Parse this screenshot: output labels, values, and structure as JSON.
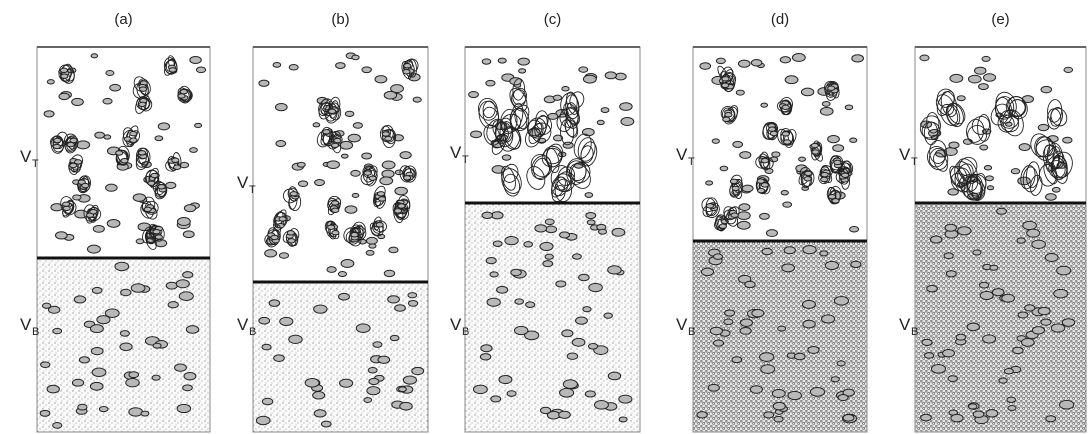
{
  "panels": [
    {
      "label": "(a)"
    },
    {
      "label": "(b)"
    },
    {
      "label": "(c)"
    },
    {
      "label": "(d)"
    },
    {
      "label": "(e)"
    }
  ],
  "zone_labels": {
    "top": {
      "base": "V",
      "sub": "T"
    },
    "bottom": {
      "base": "V",
      "sub": "B"
    }
  }
}
